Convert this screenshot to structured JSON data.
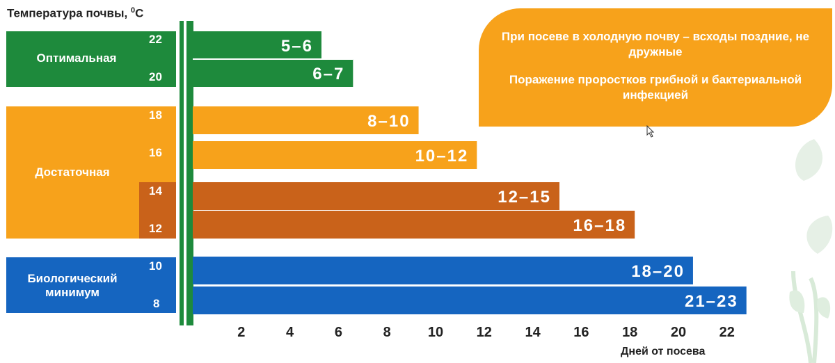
{
  "chart_data": {
    "type": "bar",
    "orientation": "horizontal",
    "ylabel": "Температура почвы, ",
    "ylabel_unit": "0",
    "ylabel_unit_suffix": "С",
    "xlabel": "Дней от посева",
    "xlim": [
      0,
      23.4
    ],
    "x_ticks": [
      "2",
      "4",
      "6",
      "8",
      "10",
      "12",
      "14",
      "16",
      "18",
      "20",
      "22"
    ],
    "grid": false,
    "bars": [
      {
        "temperature": "22",
        "days_min": 5,
        "days_max": 6,
        "label": "5–6",
        "value": 5.3,
        "color": "#1e8a3c"
      },
      {
        "temperature": "20",
        "days_min": 6,
        "days_max": 7,
        "label": "6–7",
        "value": 6.6,
        "color": "#1e8a3c"
      },
      {
        "temperature": "18",
        "days_min": 8,
        "days_max": 10,
        "label": "8–10",
        "value": 9.3,
        "color": "#f7a21b"
      },
      {
        "temperature": "16",
        "days_min": 10,
        "days_max": 12,
        "label": "10–12",
        "value": 11.7,
        "color": "#f7a21b"
      },
      {
        "temperature": "14",
        "days_min": 12,
        "days_max": 15,
        "label": "12–15",
        "value": 15.1,
        "color": "#c9621a"
      },
      {
        "temperature": "12",
        "days_min": 16,
        "days_max": 18,
        "label": "16–18",
        "value": 18.2,
        "color": "#c9621a"
      },
      {
        "temperature": "10",
        "days_min": 18,
        "days_max": 20,
        "label": "18–20",
        "value": 20.6,
        "color": "#1565c0"
      },
      {
        "temperature": "8",
        "days_min": 21,
        "days_max": 23,
        "label": "21–23",
        "value": 22.8,
        "color": "#1565c0"
      }
    ],
    "zones": [
      {
        "name": "Оптимальная",
        "color": "#1e8a3c"
      },
      {
        "name": "Достаточная",
        "color": "#f7a21b"
      },
      {
        "name": "Биологический минимум",
        "color": "#1565c0"
      }
    ]
  },
  "callout": {
    "line1": "При посеве в холодную почву – всходы поздние, не дружные",
    "line2": "Поражение проростков грибной и бактериальной инфекцией"
  },
  "colors": {
    "green": "#1e8a3c",
    "orange": "#f7a21b",
    "dark_orange": "#c9621a",
    "blue": "#1565c0"
  }
}
